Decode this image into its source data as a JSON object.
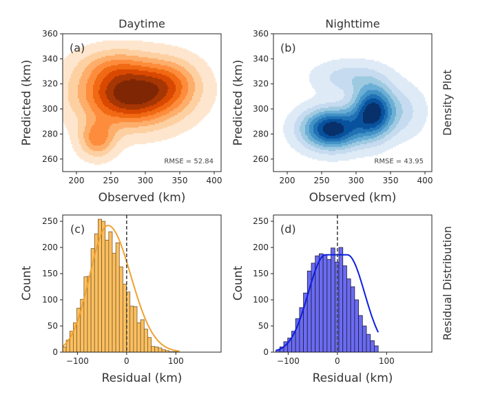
{
  "figure": {
    "row_labels": [
      "Density Plot",
      "Residual Distribution"
    ]
  },
  "chart_data": [
    {
      "id": "a",
      "type": "heatmap",
      "subtype": "kde-contour",
      "panel_label": "(a)",
      "title": "Daytime",
      "xlabel": "Observed (km)",
      "ylabel": "Predicted (km)",
      "xlim": [
        180,
        410
      ],
      "ylim": [
        250,
        360
      ],
      "xticks": [
        200,
        250,
        300,
        350,
        400
      ],
      "yticks": [
        260,
        280,
        300,
        320,
        340,
        360
      ],
      "annotation": "RMSE = 52.84",
      "colormap": [
        "#fee6ce",
        "#fdd0a2",
        "#fdae6b",
        "#fd8d3c",
        "#f16913",
        "#d94801",
        "#a63603",
        "#7f2704"
      ],
      "modes": [
        {
          "x": 280,
          "y": 312,
          "sx": 50,
          "sy": 17,
          "w": 1.0
        },
        {
          "x": 230,
          "y": 276,
          "sx": 18,
          "sy": 10,
          "w": 0.45
        },
        {
          "x": 340,
          "y": 322,
          "sx": 28,
          "sy": 13,
          "w": 0.25
        },
        {
          "x": 250,
          "y": 335,
          "sx": 35,
          "sy": 10,
          "w": 0.18
        }
      ]
    },
    {
      "id": "b",
      "type": "heatmap",
      "subtype": "kde-contour",
      "panel_label": "(b)",
      "title": "Nighttime",
      "xlabel": "Observed (km)",
      "ylabel": "Predicted (km)",
      "xlim": [
        180,
        410
      ],
      "ylim": [
        250,
        360
      ],
      "xticks": [
        200,
        250,
        300,
        350,
        400
      ],
      "yticks": [
        260,
        280,
        300,
        320,
        340,
        360
      ],
      "annotation": "RMSE = 43.95",
      "colormap": [
        "#deebf7",
        "#c6dbef",
        "#9ecae1",
        "#6baed6",
        "#4292c6",
        "#2171b5",
        "#08519c",
        "#08306b"
      ],
      "modes": [
        {
          "x": 265,
          "y": 284,
          "sx": 30,
          "sy": 11,
          "w": 1.0
        },
        {
          "x": 325,
          "y": 298,
          "sx": 20,
          "sy": 14,
          "w": 0.95
        },
        {
          "x": 290,
          "y": 325,
          "sx": 35,
          "sy": 9,
          "w": 0.25
        },
        {
          "x": 370,
          "y": 298,
          "sx": 22,
          "sy": 14,
          "w": 0.2
        }
      ]
    },
    {
      "id": "c",
      "type": "bar",
      "subtype": "histogram-kde",
      "panel_label": "(c)",
      "title": "",
      "xlabel": "Residual (km)",
      "ylabel": "Count",
      "xlim": [
        -130,
        192
      ],
      "ylim": [
        0,
        262
      ],
      "xticks": [
        -100,
        0,
        100
      ],
      "xtick_labels": [
        "−100",
        "0",
        "100"
      ],
      "yticks": [
        0,
        50,
        100,
        150,
        200,
        250
      ],
      "bin_start": -130,
      "bin_width": 7.2,
      "counts": [
        10,
        23,
        40,
        56,
        84,
        101,
        144,
        145,
        198,
        226,
        254,
        250,
        214,
        230,
        189,
        209,
        163,
        130,
        115,
        88,
        87,
        56,
        62,
        44,
        28,
        11,
        10,
        8,
        5,
        3,
        1,
        1,
        1
      ],
      "bar_color": "#fbbf5f",
      "line_color": "#f0a030",
      "vline_x": 0,
      "kde": {
        "mu": -38,
        "sigma": 40,
        "peak": 242,
        "skew": 0.55
      }
    },
    {
      "id": "d",
      "type": "bar",
      "subtype": "histogram-kde",
      "panel_label": "(d)",
      "title": "",
      "xlabel": "Residual (km)",
      "ylabel": "Count",
      "xlim": [
        -130,
        192
      ],
      "ylim": [
        0,
        262
      ],
      "xticks": [
        -100,
        0,
        100
      ],
      "xtick_labels": [
        "−100",
        "0",
        "100"
      ],
      "yticks": [
        0,
        50,
        100,
        150,
        200,
        250
      ],
      "bin_start": -125,
      "bin_width": 8.0,
      "counts": [
        4,
        10,
        20,
        27,
        40,
        64,
        85,
        113,
        155,
        170,
        184,
        188,
        186,
        177,
        199,
        172,
        200,
        165,
        140,
        125,
        100,
        70,
        50,
        34,
        22,
        12
      ],
      "bar_color": "#6b6bf0",
      "line_color": "#0a1ee0",
      "vline_x": 0,
      "kde": {
        "mu": -2,
        "sigma": 44,
        "peak": 186,
        "flat": 22
      }
    }
  ]
}
